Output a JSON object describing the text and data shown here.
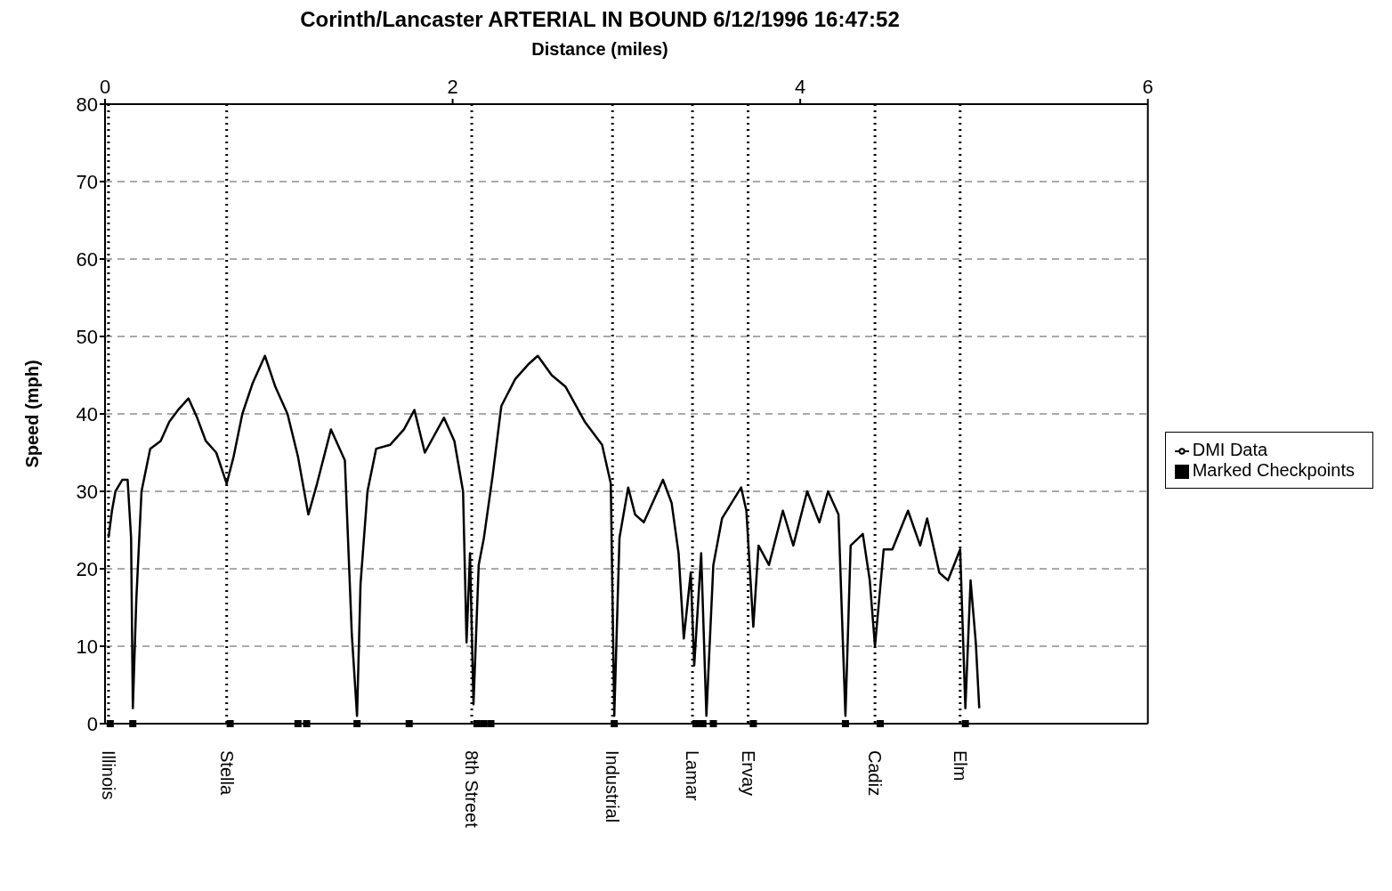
{
  "chart_data": {
    "type": "line",
    "title": "Corinth/Lancaster ARTERIAL IN BOUND 6/12/1996 16:47:52",
    "xlabel": "Distance (miles)",
    "ylabel": "Speed (mph)",
    "xlim": [
      0,
      6
    ],
    "xticks": [
      0,
      2,
      4,
      6
    ],
    "ylim": [
      0,
      80
    ],
    "yticks": [
      0,
      10,
      20,
      30,
      40,
      50,
      60,
      70,
      80
    ],
    "grid": "y",
    "legend": "right",
    "series": [
      {
        "name": "DMI Data",
        "type": "line",
        "color": "#000000",
        "marker": "none",
        "line_style": "solid",
        "x": [
          0.02,
          0.04,
          0.06,
          0.1,
          0.13,
          0.15,
          0.16,
          0.18,
          0.21,
          0.26,
          0.32,
          0.37,
          0.42,
          0.48,
          0.53,
          0.58,
          0.64,
          0.7,
          0.74,
          0.79,
          0.85,
          0.92,
          0.98,
          1.05,
          1.11,
          1.17,
          1.22,
          1.3,
          1.38,
          1.42,
          1.45,
          1.47,
          1.51,
          1.56,
          1.64,
          1.72,
          1.78,
          1.84,
          1.95,
          2.01,
          2.06,
          2.08,
          2.1,
          2.12,
          2.15,
          2.18,
          2.23,
          2.28,
          2.36,
          2.44,
          2.49,
          2.57,
          2.65,
          2.76,
          2.86,
          2.91,
          2.93,
          2.96,
          3.01,
          3.05,
          3.1,
          3.21,
          3.26,
          3.3,
          3.33,
          3.37,
          3.39,
          3.43,
          3.46,
          3.5,
          3.55,
          3.66,
          3.69,
          3.73,
          3.76,
          3.82,
          3.9,
          3.96,
          4.04,
          4.11,
          4.16,
          4.22,
          4.26,
          4.29,
          4.36,
          4.4,
          4.43,
          4.48,
          4.53,
          4.62,
          4.69,
          4.73,
          4.8,
          4.85,
          4.92,
          4.95,
          4.98,
          5.01,
          5.03
        ],
        "values": [
          24,
          27.5,
          30,
          31.5,
          31.5,
          24,
          2,
          16,
          30,
          35.5,
          36.5,
          39,
          40.5,
          42,
          39.5,
          36.5,
          35,
          31,
          34.5,
          40,
          44,
          47.5,
          43.5,
          40,
          34.5,
          27,
          31,
          38,
          34,
          11.5,
          1,
          18,
          30,
          35.5,
          36,
          38,
          40.5,
          35,
          39.5,
          36.5,
          30,
          10.5,
          22,
          2.5,
          20.5,
          24,
          32,
          41,
          44.5,
          46.5,
          47.5,
          45,
          43.5,
          39,
          36,
          31,
          1,
          24,
          30.5,
          27,
          26,
          31.5,
          28.5,
          22,
          11,
          19.5,
          7.5,
          22,
          1,
          20.5,
          26.5,
          30.5,
          27.5,
          12.5,
          23,
          20.5,
          27.5,
          23,
          30,
          26,
          30,
          27,
          1,
          23,
          24.5,
          18.5,
          10,
          22.5,
          22.5,
          27.5,
          23,
          26.5,
          19.5,
          18.5,
          22.5,
          2,
          18.5,
          10.5,
          2
        ]
      },
      {
        "name": "Marked Checkpoints",
        "type": "scatter",
        "color": "#000000",
        "marker": "square",
        "x": [
          0.03,
          0.16,
          0.72,
          1.11,
          1.16,
          1.45,
          1.75,
          2.14,
          2.18,
          2.22,
          2.93,
          3.4,
          3.44,
          3.5,
          3.73,
          4.26,
          4.46,
          4.95
        ],
        "values": [
          0,
          0,
          0,
          0,
          0,
          0,
          0,
          0,
          0,
          0,
          0,
          0,
          0,
          0,
          0,
          0,
          0,
          0
        ]
      }
    ],
    "ref_lines": [
      {
        "axis": "x",
        "value": 0.02,
        "label": "Illinois",
        "line_style": "dotted"
      },
      {
        "axis": "x",
        "value": 0.7,
        "label": "Stella",
        "line_style": "dotted"
      },
      {
        "axis": "x",
        "value": 2.11,
        "label": "8th Street",
        "line_style": "dotted"
      },
      {
        "axis": "x",
        "value": 2.92,
        "label": "Industrial",
        "line_style": "dotted"
      },
      {
        "axis": "x",
        "value": 3.38,
        "label": "Lamar",
        "line_style": "dotted"
      },
      {
        "axis": "x",
        "value": 3.7,
        "label": "Ervay",
        "line_style": "dotted"
      },
      {
        "axis": "x",
        "value": 4.43,
        "label": "Cadiz",
        "line_style": "dotted"
      },
      {
        "axis": "x",
        "value": 4.92,
        "label": "Elm",
        "line_style": "dotted"
      }
    ]
  }
}
